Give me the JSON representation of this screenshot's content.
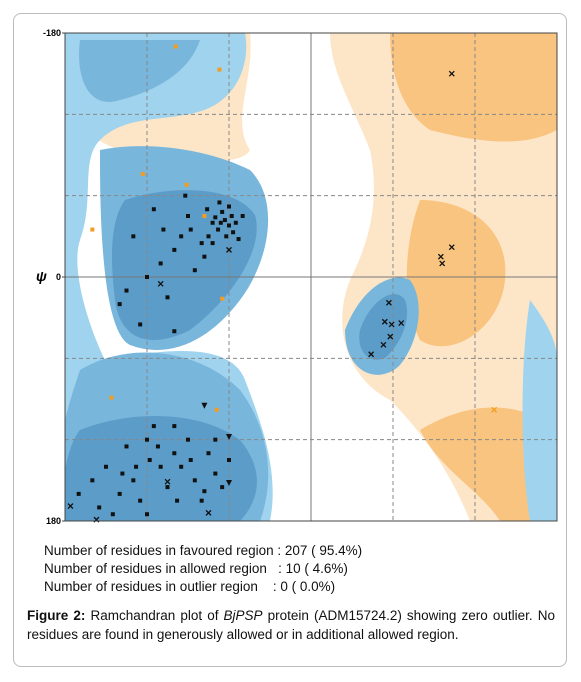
{
  "chart_data": {
    "type": "scatter",
    "y_label": "ψ",
    "xlim": [
      -180,
      180
    ],
    "ylim": [
      180,
      -180
    ],
    "yticks": [
      -180,
      0,
      180
    ],
    "x_grid": [
      -120,
      -60,
      0,
      60,
      120
    ],
    "y_grid": [
      -120,
      -60,
      0,
      60,
      120
    ],
    "series": [
      {
        "marker": "square",
        "color": "#111111",
        "x": [
          -66,
          -63,
          -60,
          -68,
          -70,
          -58,
          -62,
          -72,
          -65,
          -55,
          -75,
          -80,
          -67,
          -90,
          -95,
          -100,
          -110,
          -85,
          -120,
          -105,
          -130,
          -140,
          -125,
          -100,
          -92,
          -115,
          -78,
          -72,
          -60,
          -57,
          -50,
          -53,
          -88,
          -76,
          -135,
          -108,
          -118,
          -120,
          -110,
          -130,
          -100,
          -95,
          -85,
          -75,
          -70,
          -65,
          -140,
          -150,
          -160,
          -125,
          -135,
          -105,
          -90,
          -80,
          -145,
          -115,
          -100,
          -70,
          -60,
          -155,
          -170,
          -120,
          -88,
          -112,
          -128,
          -78,
          -98,
          -138
        ],
        "y": [
          -40,
          -42,
          -38,
          -35,
          -44,
          -45,
          -30,
          -40,
          -48,
          -40,
          -30,
          -25,
          -55,
          -45,
          -30,
          -20,
          -10,
          -5,
          0,
          15,
          -30,
          20,
          35,
          40,
          -60,
          -50,
          -15,
          -25,
          -52,
          -33,
          -45,
          -28,
          -35,
          -50,
          10,
          -35,
          135,
          120,
          140,
          150,
          130,
          140,
          150,
          130,
          145,
          155,
          160,
          140,
          150,
          165,
          125,
          155,
          120,
          165,
          175,
          110,
          110,
          120,
          135,
          170,
          160,
          175,
          135,
          125,
          140,
          158,
          165,
          145
        ]
      },
      {
        "marker": "cross",
        "color": "#111111",
        "x": [
          103,
          103,
          95,
          96,
          57,
          54,
          59,
          66,
          58,
          44,
          53,
          -176,
          -157,
          -105,
          -75,
          -110,
          -60
        ],
        "y": [
          -150,
          -22,
          -15,
          -10,
          19,
          33,
          35,
          34,
          44,
          57,
          50,
          169,
          179,
          151,
          174,
          5,
          -20
        ]
      },
      {
        "marker": "triangle",
        "color": "#111111",
        "x": [
          -78,
          -60,
          -60
        ],
        "y": [
          95,
          118,
          152
        ]
      },
      {
        "marker": "square",
        "color": "#f39c1f",
        "x": [
          -99,
          -67,
          -123,
          -91,
          -160,
          -65,
          -146,
          -69,
          -78
        ],
        "y": [
          -170,
          -153,
          -76,
          -68,
          -35,
          16,
          89,
          98,
          -45
        ]
      },
      {
        "marker": "cross",
        "color": "#f39c1f",
        "x": [
          134
        ],
        "y": [
          98
        ]
      }
    ]
  },
  "stats": [
    "Number of residues in favoured region : 207 ( 95.4%)",
    "Number of residues in allowed region   : 10 ( 4.6%)",
    "Number of residues in outlier region    : 0 ( 0.0%)"
  ],
  "caption": {
    "label": "Figure 2:",
    "text1": " Ramchandran plot of ",
    "italic": "BjPSP",
    "text2": " protein (ADM15724.2) showing zero outlier. No residues are found in generously allowed or in additional allowed region."
  }
}
